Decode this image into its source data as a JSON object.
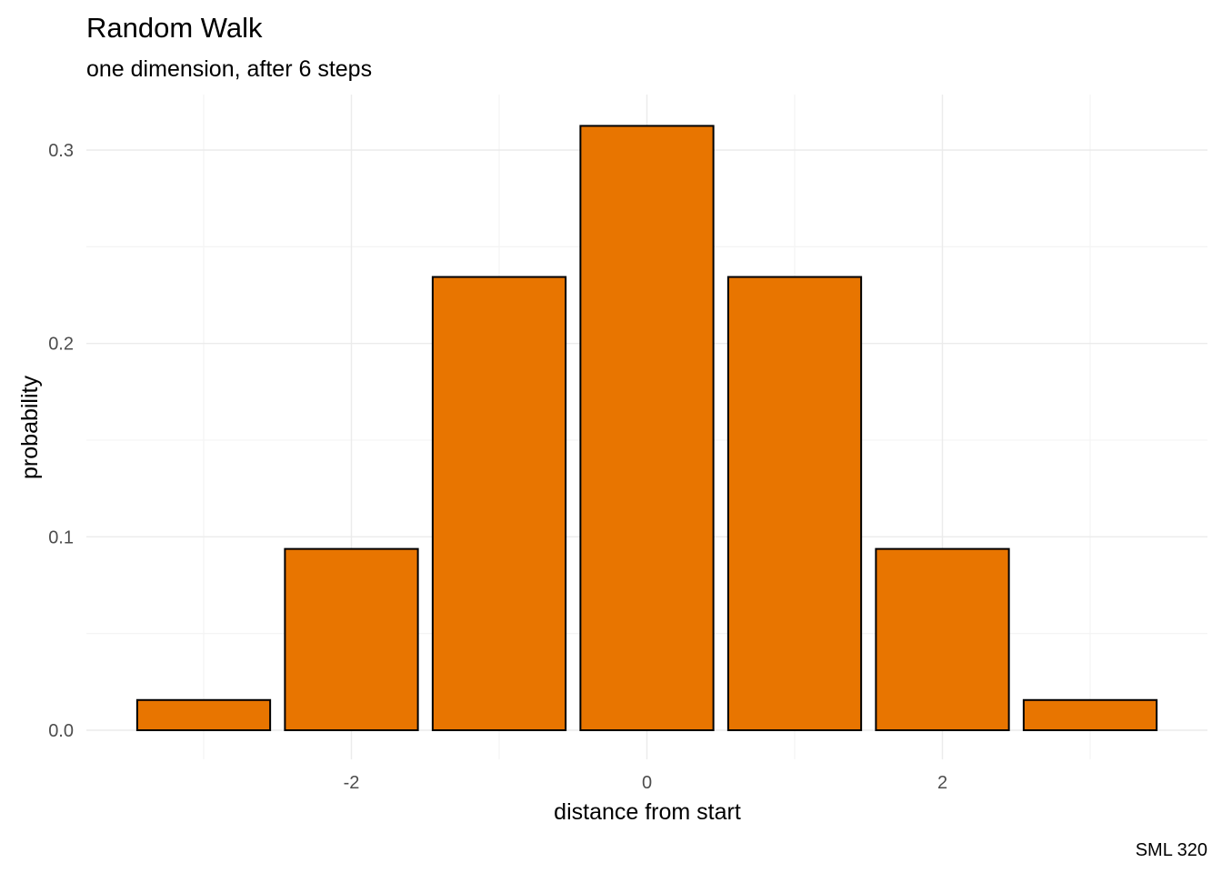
{
  "chart_data": {
    "type": "bar",
    "title": "Random Walk",
    "subtitle": "one dimension, after 6 steps",
    "xlabel": "distance from start",
    "ylabel": "probability",
    "caption": "SML 320",
    "x": [
      -3,
      -2,
      -1,
      0,
      1,
      2,
      3
    ],
    "values": [
      0.015625,
      0.09375,
      0.234375,
      0.3125,
      0.234375,
      0.09375,
      0.015625
    ],
    "xlim": [
      -3.5,
      3.5
    ],
    "ylim": [
      0,
      0.3125
    ],
    "x_ticks": [
      -2,
      0,
      2
    ],
    "x_tick_labels": [
      "-2",
      "0",
      "2"
    ],
    "y_ticks": [
      0.0,
      0.1,
      0.2,
      0.3
    ],
    "y_tick_labels": [
      "0.0",
      "0.1",
      "0.2",
      "0.3"
    ],
    "grid": true,
    "legend": "none",
    "colors": {
      "bar_fill": "#E87500",
      "bar_outline": "#000000",
      "grid": "#ebebeb",
      "tick_text": "#4d4d4d"
    }
  }
}
